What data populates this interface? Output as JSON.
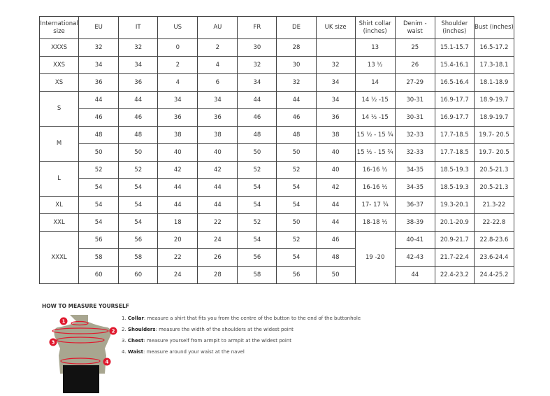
{
  "headers": [
    "International size",
    "EU",
    "IT",
    "US",
    "AU",
    "FR",
    "DE",
    "UK size",
    "Shirt collar (inches)",
    "Denim - waist",
    "Shoulder (inches)",
    "Bust (inches)"
  ],
  "groups": [
    {
      "size": "XXXS",
      "rows": [
        [
          "32",
          "32",
          "0",
          "2",
          "30",
          "28",
          "",
          "13",
          "25",
          "15.1-15.7",
          "16.5-17.2"
        ]
      ]
    },
    {
      "size": "XXS",
      "rows": [
        [
          "34",
          "34",
          "2",
          "4",
          "32",
          "30",
          "32",
          "13 ½",
          "26",
          "15.4-16.1",
          "17.3-18.1"
        ]
      ]
    },
    {
      "size": "XS",
      "rows": [
        [
          "36",
          "36",
          "4",
          "6",
          "34",
          "32",
          "34",
          "14",
          "27-29",
          "16.5-16.4",
          "18.1-18.9"
        ]
      ]
    },
    {
      "size": "S",
      "rows": [
        [
          "44",
          "44",
          "34",
          "34",
          "44",
          "44",
          "34",
          "14 ½ -15",
          "30-31",
          "16.9-17.7",
          "18.9-19.7"
        ],
        [
          "46",
          "46",
          "36",
          "36",
          "46",
          "46",
          "36",
          "14 ½ -15",
          "30-31",
          "16.9-17.7",
          "18.9-19.7"
        ]
      ]
    },
    {
      "size": "M",
      "rows": [
        [
          "48",
          "48",
          "38",
          "38",
          "48",
          "48",
          "38",
          "15 ½ - 15 ¾",
          "32-33",
          "17.7-18.5",
          "19.7- 20.5"
        ],
        [
          "50",
          "50",
          "40",
          "40",
          "50",
          "50",
          "40",
          "15 ½ - 15 ¾",
          "32-33",
          "17.7-18.5",
          "19.7- 20.5"
        ]
      ]
    },
    {
      "size": "L",
      "rows": [
        [
          "52",
          "52",
          "42",
          "42",
          "52",
          "52",
          "40",
          "16-16 ½",
          "34-35",
          "18.5-19.3",
          "20.5-21.3"
        ],
        [
          "54",
          "54",
          "44",
          "44",
          "54",
          "54",
          "42",
          "16-16 ½",
          "34-35",
          "18.5-19.3",
          "20.5-21.3"
        ]
      ]
    },
    {
      "size": "XL",
      "rows": [
        [
          "54",
          "54",
          "44",
          "44",
          "54",
          "54",
          "44",
          "17- 17 ¾",
          "36-37",
          "19.3-20.1",
          "21.3-22"
        ]
      ]
    },
    {
      "size": "XXL",
      "rows": [
        [
          "54",
          "54",
          "18",
          "22",
          "52",
          "50",
          "44",
          "18-18 ½",
          "38-39",
          "20.1-20.9",
          "22-22.8"
        ]
      ]
    },
    {
      "size": "XXXL",
      "collar": "19 -20",
      "rows": [
        [
          "56",
          "56",
          "20",
          "24",
          "54",
          "52",
          "46",
          "40-41",
          "20.9-21.7",
          "22.8-23.6"
        ],
        [
          "58",
          "58",
          "22",
          "26",
          "56",
          "54",
          "48",
          "42-43",
          "21.7-22.4",
          "23.6-24.4"
        ],
        [
          "60",
          "60",
          "24",
          "28",
          "58",
          "56",
          "50",
          "44",
          "22.4-23.2",
          "24.4-25.2"
        ]
      ]
    }
  ],
  "measure": {
    "title": "HOW TO MEASURE YOURSELF",
    "markers": [
      "1",
      "2",
      "3",
      "4"
    ],
    "steps": [
      {
        "num": "1.",
        "term": "Collar",
        "text": ": measure a shirt that fits you from the centre of the button to the end of the buttonhole"
      },
      {
        "num": "2.",
        "term": "Shoulders",
        "text": ": measure the width of the shoulders at the widest point"
      },
      {
        "num": "3.",
        "term": "Chest",
        "text": ": measure yourself from armpit to armpit at the widest point"
      },
      {
        "num": "4.",
        "term": "Waist",
        "text": ": measure around your waist at the navel"
      }
    ]
  },
  "colors": {
    "marker": "#e0182d",
    "torso": "#a8a690",
    "shorts": "#111111"
  }
}
